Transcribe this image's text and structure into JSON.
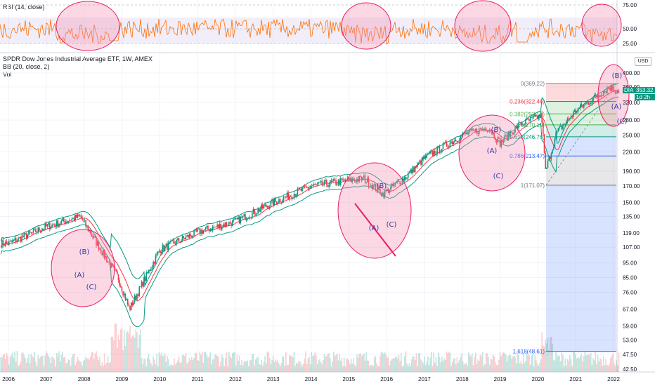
{
  "rsi_pane": {
    "label": "RSI (14, close)",
    "levels": [
      "75.00",
      "50.00",
      "25.00"
    ]
  },
  "main_pane": {
    "title": "SPDR Dow Jones Industrial Average ETF, 1W, AMEX",
    "bb_label": "BB (20, close, 2)",
    "vol_label": "Vol",
    "currency_button": "USD",
    "ticker_tag": "DIA",
    "last_price": "353.32",
    "countdown": "1d 2h",
    "price_axis": [
      "400.00",
      "360.00",
      "320.00",
      "280.00",
      "250.00",
      "220.00",
      "190.00",
      "170.00",
      "150.00",
      "135.00",
      "119.00",
      "107.00",
      "95.00",
      "85.00",
      "76.00",
      "67.00",
      "59.00",
      "53.00",
      "47.50",
      "42.50"
    ],
    "time_axis": [
      "2006",
      "2007",
      "2008",
      "2009",
      "2010",
      "2011",
      "2012",
      "2013",
      "2014",
      "2015",
      "2016",
      "2017",
      "2018",
      "2019",
      "2020",
      "2021",
      "2022"
    ]
  },
  "fib_levels": [
    {
      "label": "0(369.22)",
      "color": "#787b86"
    },
    {
      "label": "0.236(322.46)",
      "color": "#f23645"
    },
    {
      "label": "0.382(293.53)",
      "color": "#4caf50"
    },
    {
      "label": "0.5(270.19)",
      "color": "#4caf50"
    },
    {
      "label": "0.618(246.76)",
      "color": "#089981"
    },
    {
      "label": "0.786(213.47)",
      "color": "#2962ff"
    },
    {
      "label": "1(171.07)",
      "color": "#787b86"
    },
    {
      "label": "1.618(48.61)",
      "color": "#2962ff"
    }
  ],
  "wave_labels": {
    "group_2008": [
      "(B)",
      "(A)",
      "(C)"
    ],
    "group_2015": [
      "(B)",
      "(A)",
      "(C)"
    ],
    "group_2018": [
      "(B)",
      "(A)",
      "(C)"
    ],
    "group_2022": [
      "(B)",
      "(A)",
      "(C)"
    ]
  },
  "colors": {
    "price_up": "#089981",
    "price_down": "#f23645",
    "bb_band": "#089981",
    "bb_basis": "#f23645",
    "rsi_line": "#ff6d00",
    "rsi_fill": "#7e57c2",
    "highlight_ellipse": "#f48fb1",
    "ticker_tag_bg": "#089981"
  },
  "chart_data": {
    "type": "candlestick",
    "series": [
      {
        "name": "SPDR Dow Jones Industrial Average ETF",
        "x": [
          "2006",
          "2007",
          "2007.9",
          "2008.9",
          "2009.2",
          "2010",
          "2011",
          "2012",
          "2013",
          "2014",
          "2015.4",
          "2015.9",
          "2016.5",
          "2017",
          "2018",
          "2018.7",
          "2019.0",
          "2019.5",
          "2020.1",
          "2020.2",
          "2020.5",
          "2021",
          "2021.9",
          "2022.1"
        ],
        "values": [
          110,
          125,
          135,
          85,
          67,
          105,
          120,
          130,
          150,
          170,
          180,
          160,
          182,
          210,
          250,
          265,
          235,
          270,
          290,
          190,
          255,
          300,
          360,
          350
        ]
      }
    ],
    "rsi": {
      "levels": [
        75,
        50,
        25
      ]
    },
    "fibonacci": {
      "0": 369.22,
      "0.236": 322.46,
      "0.382": 293.53,
      "0.5": 270.19,
      "0.618": 246.76,
      "0.786": 213.47,
      "1": 171.07,
      "1.618": 48.61
    },
    "y_scale": "log",
    "last_price": 353.32
  }
}
